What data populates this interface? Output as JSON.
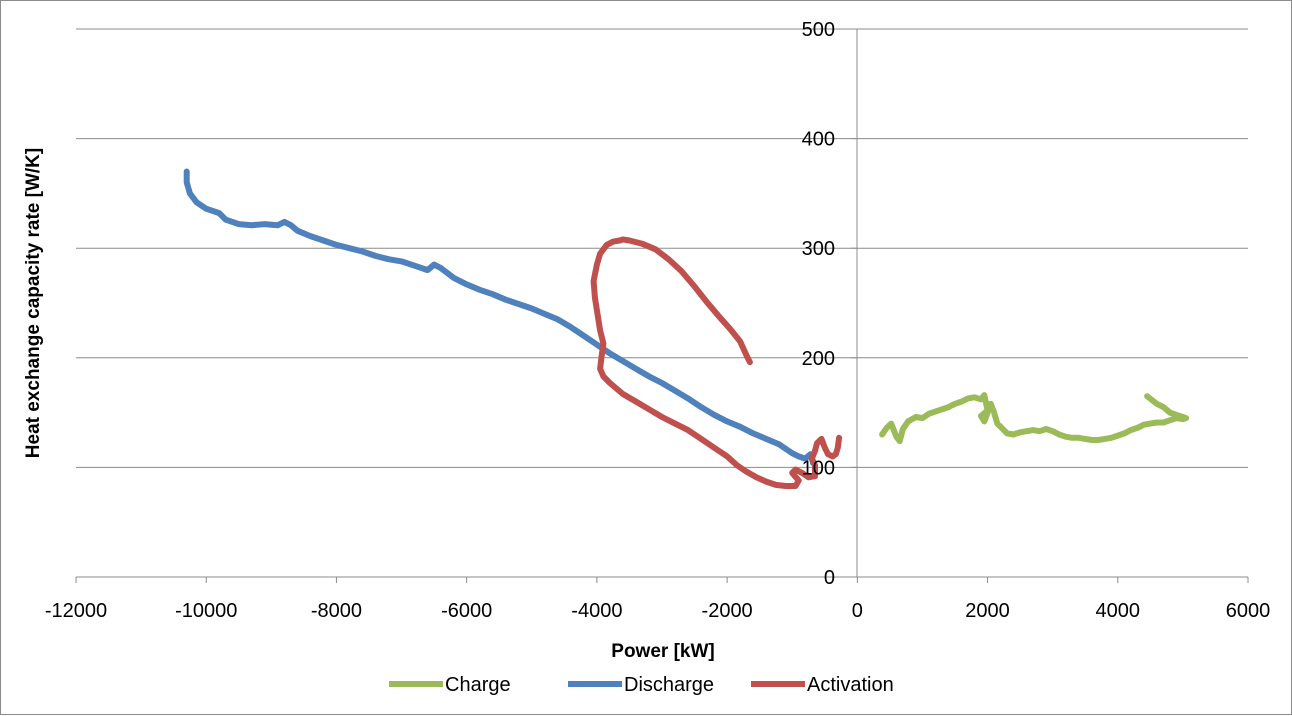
{
  "chart_data": {
    "type": "line",
    "title": "",
    "xlabel": "Power [kW]",
    "ylabel": "Heat exchange capacity rate [W/K]",
    "xlim": [
      -12000,
      6000
    ],
    "ylim": [
      0,
      500
    ],
    "x_ticks": [
      -12000,
      -10000,
      -8000,
      -6000,
      -4000,
      -2000,
      0,
      2000,
      4000,
      6000
    ],
    "y_ticks": [
      0,
      100,
      200,
      300,
      400,
      500
    ],
    "grid": "horizontal",
    "legend_position": "bottom",
    "series": [
      {
        "name": "Charge",
        "color": "#9BBB59",
        "points": [
          [
            380,
            130
          ],
          [
            450,
            136
          ],
          [
            520,
            140
          ],
          [
            600,
            128
          ],
          [
            650,
            124
          ],
          [
            700,
            135
          ],
          [
            780,
            142
          ],
          [
            900,
            146
          ],
          [
            1000,
            145
          ],
          [
            1100,
            149
          ],
          [
            1200,
            151
          ],
          [
            1300,
            153
          ],
          [
            1400,
            155
          ],
          [
            1500,
            158
          ],
          [
            1600,
            160
          ],
          [
            1700,
            163
          ],
          [
            1800,
            164
          ],
          [
            1900,
            162
          ],
          [
            1950,
            166
          ],
          [
            2000,
            152
          ],
          [
            1900,
            147
          ],
          [
            1950,
            142
          ],
          [
            2050,
            158
          ],
          [
            2100,
            150
          ],
          [
            2150,
            140
          ],
          [
            2200,
            137
          ],
          [
            2300,
            131
          ],
          [
            2400,
            130
          ],
          [
            2500,
            132
          ],
          [
            2600,
            133
          ],
          [
            2700,
            134
          ],
          [
            2800,
            133
          ],
          [
            2900,
            135
          ],
          [
            3000,
            133
          ],
          [
            3100,
            130
          ],
          [
            3200,
            128
          ],
          [
            3300,
            127
          ],
          [
            3400,
            127
          ],
          [
            3500,
            126
          ],
          [
            3600,
            125
          ],
          [
            3700,
            125
          ],
          [
            3800,
            126
          ],
          [
            3900,
            127
          ],
          [
            4000,
            129
          ],
          [
            4100,
            131
          ],
          [
            4200,
            134
          ],
          [
            4300,
            136
          ],
          [
            4400,
            139
          ],
          [
            4500,
            140
          ],
          [
            4600,
            141
          ],
          [
            4700,
            141
          ],
          [
            4800,
            143
          ],
          [
            4900,
            145
          ],
          [
            5000,
            144
          ],
          [
            5050,
            145
          ],
          [
            4900,
            148
          ],
          [
            4800,
            150
          ],
          [
            4700,
            155
          ],
          [
            4600,
            158
          ],
          [
            4450,
            165
          ]
        ]
      },
      {
        "name": "Discharge",
        "color": "#4F81BD",
        "points": [
          [
            -10300,
            370
          ],
          [
            -10300,
            360
          ],
          [
            -10250,
            350
          ],
          [
            -10150,
            342
          ],
          [
            -10000,
            336
          ],
          [
            -9800,
            332
          ],
          [
            -9700,
            326
          ],
          [
            -9500,
            322
          ],
          [
            -9300,
            321
          ],
          [
            -9100,
            322
          ],
          [
            -8900,
            321
          ],
          [
            -8800,
            324
          ],
          [
            -8700,
            321
          ],
          [
            -8600,
            316
          ],
          [
            -8400,
            311
          ],
          [
            -8200,
            307
          ],
          [
            -8000,
            303
          ],
          [
            -7800,
            300
          ],
          [
            -7600,
            297
          ],
          [
            -7400,
            293
          ],
          [
            -7200,
            290
          ],
          [
            -7000,
            288
          ],
          [
            -6800,
            284
          ],
          [
            -6600,
            280
          ],
          [
            -6500,
            285
          ],
          [
            -6400,
            282
          ],
          [
            -6200,
            273
          ],
          [
            -6000,
            267
          ],
          [
            -5800,
            262
          ],
          [
            -5600,
            258
          ],
          [
            -5400,
            253
          ],
          [
            -5200,
            249
          ],
          [
            -5000,
            245
          ],
          [
            -4800,
            240
          ],
          [
            -4600,
            235
          ],
          [
            -4400,
            228
          ],
          [
            -4200,
            220
          ],
          [
            -4000,
            212
          ],
          [
            -3800,
            204
          ],
          [
            -3600,
            197
          ],
          [
            -3400,
            190
          ],
          [
            -3200,
            183
          ],
          [
            -3000,
            177
          ],
          [
            -2800,
            170
          ],
          [
            -2600,
            163
          ],
          [
            -2400,
            155
          ],
          [
            -2200,
            148
          ],
          [
            -2000,
            142
          ],
          [
            -1800,
            137
          ],
          [
            -1600,
            131
          ],
          [
            -1400,
            126
          ],
          [
            -1200,
            121
          ],
          [
            -1100,
            117
          ],
          [
            -1000,
            113
          ],
          [
            -900,
            110
          ],
          [
            -800,
            108
          ],
          [
            -720,
            112
          ],
          [
            -680,
            104
          ]
        ]
      },
      {
        "name": "Activation",
        "color": "#C0504D",
        "points": [
          [
            -1650,
            196
          ],
          [
            -1700,
            202
          ],
          [
            -1800,
            215
          ],
          [
            -1950,
            226
          ],
          [
            -2100,
            236
          ],
          [
            -2300,
            250
          ],
          [
            -2500,
            265
          ],
          [
            -2700,
            279
          ],
          [
            -2900,
            290
          ],
          [
            -3100,
            299
          ],
          [
            -3300,
            304
          ],
          [
            -3500,
            307
          ],
          [
            -3600,
            308
          ],
          [
            -3650,
            307
          ],
          [
            -3750,
            306
          ],
          [
            -3850,
            303
          ],
          [
            -3950,
            295
          ],
          [
            -4000,
            285
          ],
          [
            -4050,
            270
          ],
          [
            -4030,
            255
          ],
          [
            -3990,
            240
          ],
          [
            -3950,
            225
          ],
          [
            -3900,
            213
          ],
          [
            -3930,
            200
          ],
          [
            -3950,
            190
          ],
          [
            -3900,
            183
          ],
          [
            -3800,
            177
          ],
          [
            -3700,
            172
          ],
          [
            -3600,
            167
          ],
          [
            -3400,
            160
          ],
          [
            -3200,
            153
          ],
          [
            -3000,
            146
          ],
          [
            -2800,
            140
          ],
          [
            -2600,
            134
          ],
          [
            -2400,
            126
          ],
          [
            -2200,
            118
          ],
          [
            -2000,
            110
          ],
          [
            -1850,
            102
          ],
          [
            -1700,
            96
          ],
          [
            -1550,
            91
          ],
          [
            -1400,
            87
          ],
          [
            -1250,
            84
          ],
          [
            -1100,
            83
          ],
          [
            -950,
            83
          ],
          [
            -900,
            88
          ],
          [
            -1000,
            95
          ],
          [
            -950,
            98
          ],
          [
            -850,
            95
          ],
          [
            -750,
            91
          ],
          [
            -650,
            92
          ],
          [
            -650,
            102
          ],
          [
            -700,
            108
          ],
          [
            -650,
            115
          ],
          [
            -620,
            122
          ],
          [
            -550,
            126
          ],
          [
            -500,
            118
          ],
          [
            -450,
            112
          ],
          [
            -380,
            110
          ],
          [
            -330,
            112
          ],
          [
            -300,
            118
          ],
          [
            -280,
            127
          ]
        ]
      }
    ]
  }
}
